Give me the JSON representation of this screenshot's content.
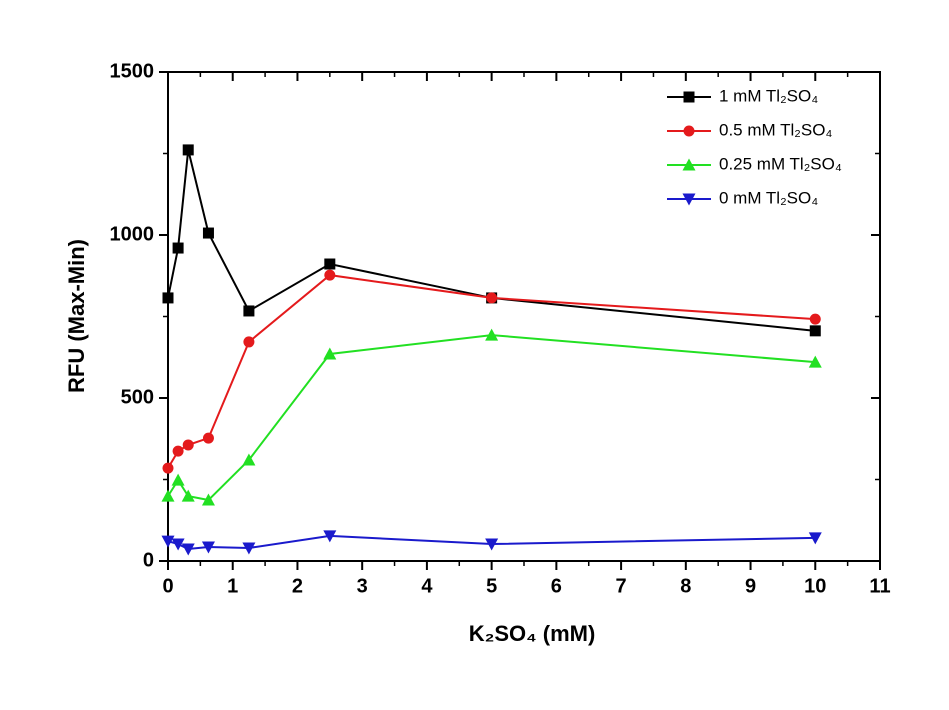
{
  "chart_data": {
    "type": "line",
    "x_label": "K₂SO₄ (mM)",
    "y_label": "RFU (Max-Min)",
    "x": [
      0,
      0.156,
      0.3125,
      0.625,
      1.25,
      2.5,
      5,
      10
    ],
    "series": [
      {
        "name": "1 mM Tl₂SO₄",
        "color": "#000000",
        "marker": "square",
        "values": [
          807,
          960,
          1261,
          1006,
          767,
          911,
          807,
          706
        ]
      },
      {
        "name": "0.5 mM Tl₂SO₄",
        "color": "#e41a1c",
        "marker": "circle",
        "values": [
          285,
          337,
          356,
          377,
          672,
          877,
          807,
          742
        ]
      },
      {
        "name": "0.25 mM Tl₂SO₄",
        "color": "#22e022",
        "marker": "triangle-up",
        "values": [
          199,
          248,
          199,
          187,
          310,
          635,
          693,
          610
        ]
      },
      {
        "name": "0 mM Tl₂SO₄",
        "color": "#1a1acc",
        "marker": "triangle-down",
        "values": [
          61,
          52,
          37,
          43,
          40,
          77,
          52,
          71
        ]
      }
    ],
    "xlim": [
      0,
      11
    ],
    "xticks": [
      0,
      1,
      2,
      3,
      4,
      5,
      6,
      7,
      8,
      9,
      10,
      11
    ],
    "ylim": [
      0,
      1500
    ],
    "yticks": [
      0,
      500,
      1000,
      1500
    ],
    "legend": "top-right",
    "grid": false
  }
}
